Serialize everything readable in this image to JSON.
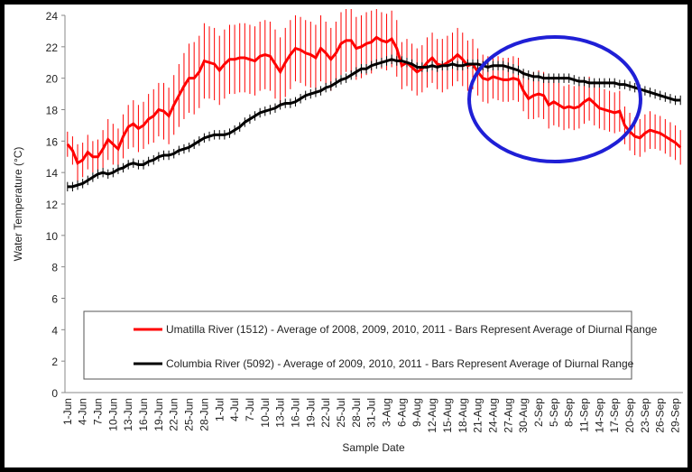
{
  "chart_data": {
    "type": "line",
    "y_label": "Water Temperature (°C)",
    "x_label": "Sample Date",
    "categories": [
      "1-Jun",
      null,
      null,
      "4-Jun",
      null,
      null,
      "7-Jun",
      null,
      null,
      "10-Jun",
      null,
      null,
      "13-Jun",
      null,
      null,
      "16-Jun",
      null,
      null,
      "19-Jun",
      null,
      null,
      "22-Jun",
      null,
      null,
      "25-Jun",
      null,
      null,
      "28-Jun",
      null,
      null,
      "1-Jul",
      null,
      null,
      "4-Jul",
      null,
      null,
      "7-Jul",
      null,
      null,
      "10-Jul",
      null,
      null,
      "13-Jul",
      null,
      null,
      "16-Jul",
      null,
      null,
      "19-Jul",
      null,
      null,
      "22-Jul",
      null,
      null,
      "25-Jul",
      null,
      null,
      "28-Jul",
      null,
      null,
      "31-Jul",
      null,
      null,
      "3-Aug",
      null,
      null,
      "6-Aug",
      null,
      null,
      "9-Aug",
      null,
      null,
      "12-Aug",
      null,
      null,
      "15-Aug",
      null,
      null,
      "18-Aug",
      null,
      null,
      "21-Aug",
      null,
      null,
      "24-Aug",
      null,
      null,
      "27-Aug",
      null,
      null,
      "30-Aug",
      null,
      null,
      "2-Sep",
      null,
      null,
      "5-Sep",
      null,
      null,
      "8-Sep",
      null,
      null,
      "11-Sep",
      null,
      null,
      "14-Sep",
      null,
      null,
      "17-Sep",
      null,
      null,
      "20-Sep",
      null,
      null,
      "23-Sep",
      null,
      null,
      "26-Sep",
      null,
      null,
      "29-Sep",
      null
    ],
    "series": [
      {
        "name": "Umatilla River (1512) - Average of 2008, 2009, 2010, 2011 - Bars Represent Average of Diurnal Range",
        "color": "#ff0000",
        "values": [
          15.8,
          15.4,
          14.6,
          14.8,
          15.3,
          15.0,
          15.0,
          15.5,
          16.1,
          15.8,
          15.5,
          16.3,
          16.9,
          17.1,
          16.8,
          17.0,
          17.4,
          17.6,
          18.0,
          17.9,
          17.6,
          18.3,
          18.9,
          19.5,
          20.0,
          20.0,
          20.4,
          21.1,
          21.0,
          20.9,
          20.5,
          20.9,
          21.2,
          21.2,
          21.3,
          21.3,
          21.2,
          21.1,
          21.4,
          21.5,
          21.4,
          20.9,
          20.4,
          21.0,
          21.5,
          21.9,
          21.8,
          21.6,
          21.5,
          21.3,
          21.9,
          21.6,
          21.2,
          21.6,
          22.2,
          22.4,
          22.4,
          21.9,
          22.0,
          22.2,
          22.3,
          22.6,
          22.4,
          22.3,
          22.5,
          21.9,
          20.8,
          21.0,
          20.7,
          20.4,
          20.6,
          21.0,
          21.3,
          20.9,
          20.8,
          21.0,
          21.2,
          21.5,
          21.2,
          20.8,
          20.9,
          20.4,
          20.0,
          19.9,
          20.1,
          20.0,
          19.9,
          19.9,
          20.0,
          19.9,
          19.2,
          18.7,
          18.9,
          19.0,
          18.9,
          18.3,
          18.5,
          18.3,
          18.1,
          18.2,
          18.1,
          18.2,
          18.5,
          18.7,
          18.4,
          18.1,
          18.0,
          17.9,
          17.8,
          17.9,
          17.0,
          16.6,
          16.3,
          16.2,
          16.5,
          16.7,
          16.6,
          16.5,
          16.3,
          16.1,
          15.9,
          15.6
        ],
        "errors": [
          0.8,
          0.9,
          1.2,
          1.1,
          1.1,
          1.0,
          1.1,
          1.2,
          1.3,
          1.3,
          1.3,
          1.4,
          1.4,
          1.5,
          1.5,
          1.5,
          1.6,
          1.7,
          1.7,
          1.8,
          1.8,
          1.9,
          2.0,
          2.1,
          2.2,
          2.3,
          2.3,
          2.4,
          2.3,
          2.3,
          2.2,
          2.2,
          2.2,
          2.2,
          2.2,
          2.2,
          2.2,
          2.2,
          2.2,
          2.2,
          2.2,
          2.2,
          2.2,
          2.2,
          2.2,
          2.1,
          2.1,
          2.1,
          2.1,
          2.1,
          2.1,
          2.0,
          2.0,
          2.0,
          2.0,
          2.0,
          2.0,
          2.0,
          2.0,
          2.0,
          2.0,
          1.8,
          1.8,
          1.8,
          1.8,
          1.8,
          1.5,
          1.5,
          1.5,
          1.5,
          1.5,
          1.6,
          1.6,
          1.6,
          1.7,
          1.7,
          1.7,
          1.7,
          1.7,
          1.6,
          1.6,
          1.5,
          1.5,
          1.5,
          1.4,
          1.4,
          1.4,
          1.4,
          1.4,
          1.4,
          1.3,
          1.3,
          1.5,
          1.5,
          1.5,
          1.5,
          1.5,
          1.4,
          1.4,
          1.4,
          1.4,
          1.4,
          1.4,
          1.4,
          1.4,
          1.3,
          1.3,
          1.3,
          1.3,
          1.3,
          1.2,
          1.2,
          1.2,
          1.2,
          1.2,
          1.2,
          1.1,
          1.1,
          1.1,
          1.1,
          1.1,
          1.1
        ]
      },
      {
        "name": "Columbia River (5092) - Average of 2009, 2010, 2011 - Bars Represent Average of Diurnal Range",
        "color": "#000000",
        "values": [
          13.1,
          13.1,
          13.2,
          13.3,
          13.5,
          13.7,
          13.9,
          14.0,
          13.9,
          14.0,
          14.2,
          14.3,
          14.5,
          14.6,
          14.5,
          14.5,
          14.7,
          14.8,
          15.0,
          15.1,
          15.1,
          15.2,
          15.4,
          15.5,
          15.6,
          15.8,
          16.0,
          16.2,
          16.3,
          16.4,
          16.4,
          16.4,
          16.5,
          16.7,
          16.9,
          17.2,
          17.4,
          17.6,
          17.8,
          17.9,
          18.0,
          18.1,
          18.3,
          18.4,
          18.4,
          18.5,
          18.7,
          18.9,
          19.0,
          19.1,
          19.2,
          19.4,
          19.5,
          19.7,
          19.9,
          20.0,
          20.2,
          20.4,
          20.6,
          20.6,
          20.8,
          20.9,
          21.0,
          21.1,
          21.2,
          21.1,
          21.1,
          21.0,
          20.9,
          20.7,
          20.7,
          20.7,
          20.8,
          20.7,
          20.8,
          20.8,
          20.9,
          20.8,
          20.8,
          20.9,
          20.9,
          20.9,
          20.8,
          20.7,
          20.8,
          20.8,
          20.8,
          20.7,
          20.6,
          20.5,
          20.3,
          20.2,
          20.1,
          20.1,
          20.0,
          20.0,
          20.0,
          20.0,
          20.0,
          20.0,
          19.9,
          19.8,
          19.8,
          19.7,
          19.7,
          19.7,
          19.7,
          19.7,
          19.7,
          19.6,
          19.6,
          19.5,
          19.4,
          19.3,
          19.2,
          19.1,
          19.0,
          18.9,
          18.8,
          18.7,
          18.6,
          18.6
        ],
        "errors": [
          0.3,
          0.3,
          0.3,
          0.3,
          0.3,
          0.3,
          0.3,
          0.3,
          0.3,
          0.3,
          0.3,
          0.3,
          0.3,
          0.3,
          0.3,
          0.3,
          0.3,
          0.3,
          0.3,
          0.3,
          0.3,
          0.3,
          0.3,
          0.3,
          0.3,
          0.3,
          0.3,
          0.3,
          0.3,
          0.3,
          0.3,
          0.3,
          0.3,
          0.3,
          0.3,
          0.3,
          0.3,
          0.3,
          0.3,
          0.3,
          0.3,
          0.3,
          0.3,
          0.3,
          0.3,
          0.3,
          0.3,
          0.3,
          0.3,
          0.3,
          0.3,
          0.3,
          0.3,
          0.3,
          0.3,
          0.3,
          0.3,
          0.3,
          0.3,
          0.3,
          0.3,
          0.3,
          0.3,
          0.3,
          0.3,
          0.3,
          0.3,
          0.3,
          0.3,
          0.3,
          0.3,
          0.3,
          0.3,
          0.3,
          0.3,
          0.3,
          0.3,
          0.3,
          0.3,
          0.3,
          0.3,
          0.3,
          0.3,
          0.3,
          0.3,
          0.3,
          0.3,
          0.3,
          0.3,
          0.3,
          0.3,
          0.3,
          0.3,
          0.3,
          0.3,
          0.3,
          0.3,
          0.3,
          0.3,
          0.3,
          0.3,
          0.3,
          0.3,
          0.3,
          0.3,
          0.3,
          0.3,
          0.3,
          0.3,
          0.3,
          0.3,
          0.3,
          0.3,
          0.3,
          0.3,
          0.3,
          0.3,
          0.3,
          0.3,
          0.3,
          0.3,
          0.3
        ]
      }
    ],
    "ylim": [
      0,
      24
    ],
    "yticks": [
      0,
      2,
      4,
      6,
      8,
      10,
      12,
      14,
      16,
      18,
      20,
      22,
      24
    ],
    "grid": false
  }
}
